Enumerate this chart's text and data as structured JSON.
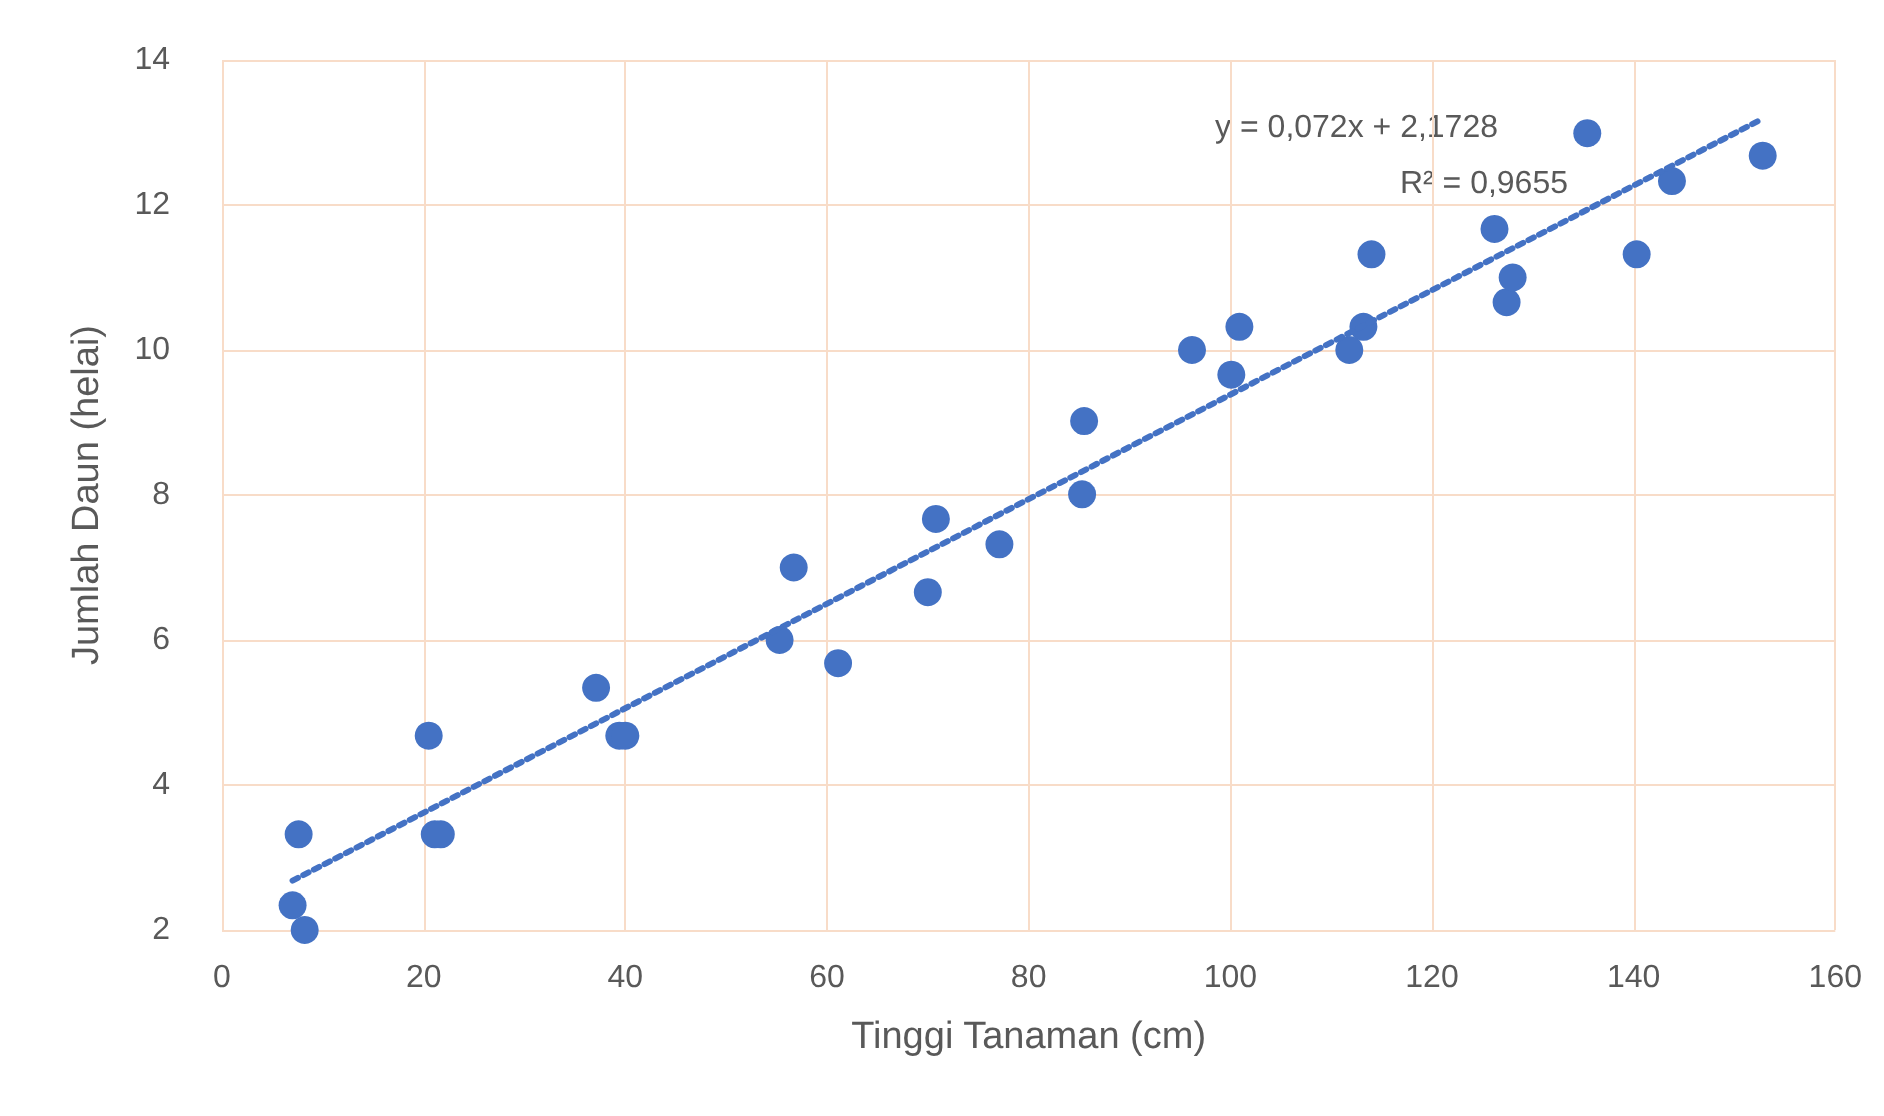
{
  "chart_data": {
    "type": "scatter",
    "xlabel": "Tinggi Tanaman (cm)",
    "ylabel": "Jumlah Daun (helai)",
    "xlim": [
      0,
      160
    ],
    "xticks": [
      0,
      20,
      40,
      60,
      80,
      100,
      120,
      140,
      160
    ],
    "ylim": [
      2,
      14
    ],
    "yticks": [
      2,
      4,
      6,
      8,
      10,
      12,
      14
    ],
    "grid": true,
    "marker": "circle",
    "annotations": [
      "y = 0,072x + 2,1728",
      "R² = 0,9655"
    ],
    "series": [
      {
        "color": "#4472c4",
        "x": [
          7.0,
          7.6,
          8.2,
          20.5,
          21.1,
          21.7,
          37.1,
          39.4,
          40.0,
          55.3,
          56.7,
          61.1,
          70.0,
          70.8,
          77.1,
          85.3,
          85.5,
          96.2,
          100.1,
          100.9,
          111.8,
          113.2,
          114.0,
          126.2,
          127.4,
          128.0,
          135.4,
          140.3,
          143.8,
          152.8
        ],
        "values": [
          2.34,
          3.32,
          2.0,
          4.68,
          3.32,
          3.32,
          5.34,
          4.68,
          4.68,
          6.0,
          7.0,
          5.68,
          6.66,
          7.67,
          7.32,
          8.01,
          9.02,
          10.0,
          9.66,
          10.32,
          10.0,
          10.32,
          11.32,
          11.67,
          10.66,
          11.0,
          12.99,
          11.32,
          12.33,
          12.68
        ]
      },
      {
        "type": "line",
        "color": "#4472c4",
        "line_style": "dotted",
        "marker": "none",
        "x": [
          7.0,
          152.8
        ],
        "values": [
          2.68,
          13.19
        ]
      }
    ]
  }
}
